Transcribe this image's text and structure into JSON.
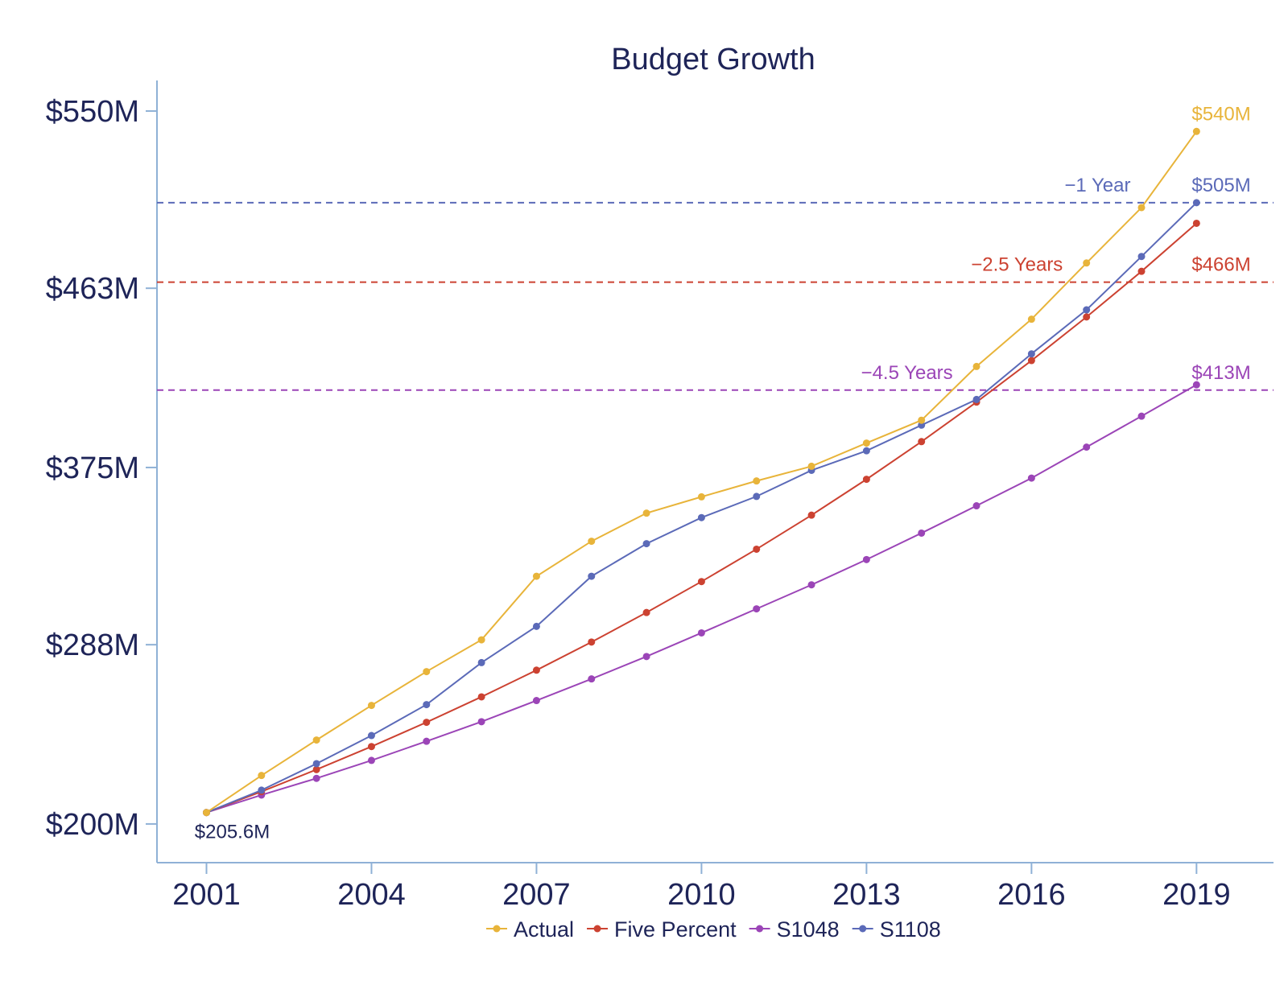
{
  "chart_data": {
    "type": "line",
    "title": "Budget Growth",
    "xlabel": "",
    "ylabel": "",
    "x": [
      2001,
      2002,
      2003,
      2004,
      2005,
      2006,
      2007,
      2008,
      2009,
      2010,
      2011,
      2012,
      2013,
      2014,
      2015,
      2016,
      2017,
      2018,
      2019
    ],
    "xticks": [
      2001,
      2004,
      2007,
      2010,
      2013,
      2016,
      2019
    ],
    "xtick_labels": [
      "2001",
      "2004",
      "2007",
      "2010",
      "2013",
      "2016",
      "2019"
    ],
    "xlim": [
      2000.1,
      2020.4
    ],
    "ylim": [
      181,
      565
    ],
    "yticks": [
      200,
      288,
      375,
      463,
      550
    ],
    "ytick_labels": [
      "$200M",
      "$288M",
      "$375M",
      "$463M",
      "$550M"
    ],
    "grid": false,
    "legend_position": "bottom",
    "series": [
      {
        "name": "Actual",
        "color": "#e8b43a",
        "values": [
          205.6,
          223.8,
          241.2,
          258.2,
          274.8,
          290.4,
          321.6,
          338.8,
          352.6,
          360.6,
          368.4,
          375.6,
          387.0,
          398.2,
          424.6,
          447.8,
          475.4,
          502.6,
          540.0
        ]
      },
      {
        "name": "Five Percent",
        "color": "#cc4231",
        "values": [
          205.6,
          215.9,
          226.7,
          238.0,
          249.9,
          262.4,
          275.5,
          289.3,
          303.8,
          319.0,
          334.9,
          351.6,
          369.2,
          387.7,
          407.1,
          427.5,
          448.9,
          471.3,
          494.9
        ]
      },
      {
        "name": "S1048",
        "color": "#9b45b7",
        "values": [
          205.6,
          214.2,
          222.4,
          231.2,
          240.6,
          250.2,
          260.6,
          271.2,
          282.2,
          293.8,
          305.6,
          317.4,
          329.8,
          342.8,
          356.2,
          369.8,
          385.0,
          400.2,
          415.6
        ]
      },
      {
        "name": "S1108",
        "color": "#5b6ab8",
        "values": [
          205.6,
          216.6,
          229.6,
          243.4,
          258.6,
          279.2,
          297.0,
          321.6,
          337.6,
          350.4,
          360.8,
          373.6,
          383.2,
          395.8,
          408.4,
          430.8,
          452.4,
          478.6,
          505.0
        ]
      }
    ],
    "reference_lines": [
      {
        "y": 505,
        "color": "#5b6ab8",
        "label": "−1 Year",
        "label_x": 2016.6
      },
      {
        "y": 466,
        "color": "#cc4231",
        "label": "−2.5 Years",
        "label_x": 2014.9
      },
      {
        "y": 413,
        "color": "#9b45b7",
        "label": "−4.5 Years",
        "label_x": 2012.9
      }
    ],
    "end_labels": [
      {
        "text": "$540M",
        "y": 540,
        "color": "#e8b43a"
      },
      {
        "text": "$505M",
        "y": 505,
        "color": "#5b6ab8"
      },
      {
        "text": "$466M",
        "y": 466,
        "color": "#cc4231"
      },
      {
        "text": "$413M",
        "y": 413,
        "color": "#9b45b7"
      }
    ],
    "start_label": {
      "text": "$205.6M",
      "color": "#1e2458"
    },
    "axis_color": "#8fb1d6",
    "text_color": "#1e2458"
  }
}
